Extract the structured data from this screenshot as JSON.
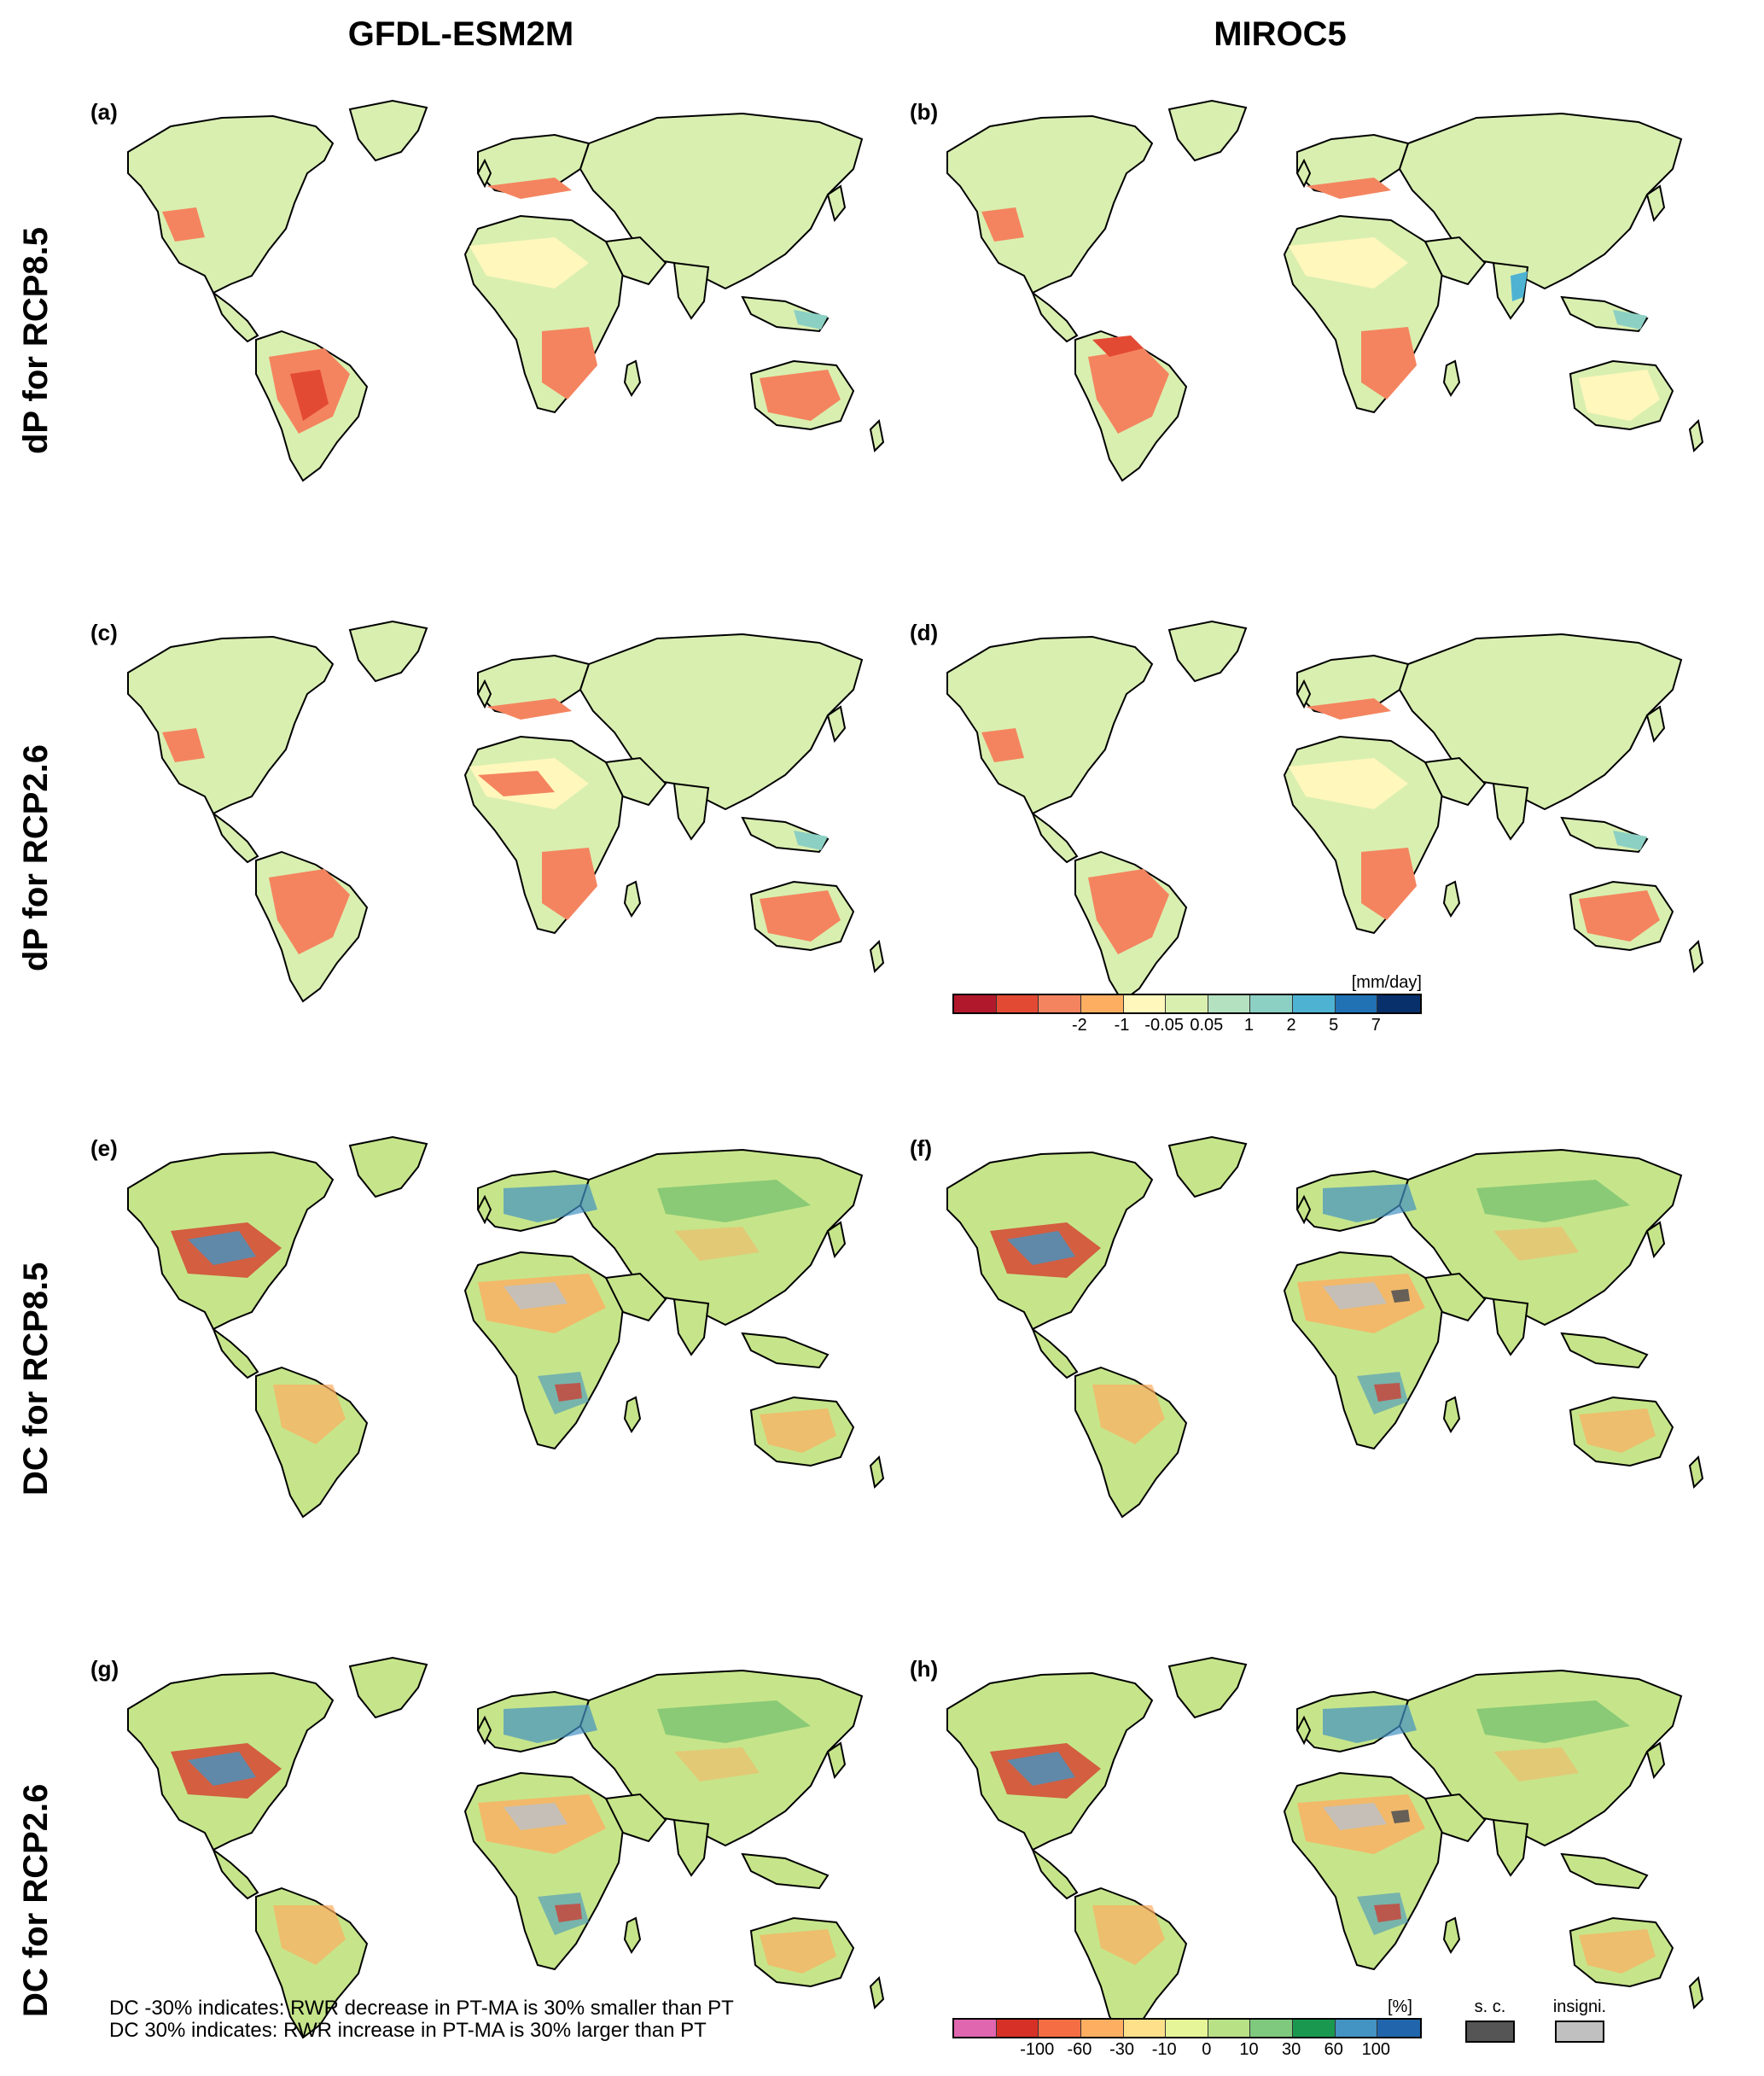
{
  "columns": {
    "left": "GFDL-ESM2M",
    "right": "MIROC5"
  },
  "rows": [
    "dP for RCP8.5",
    "dP for RCP2.6",
    "DC for RCP8.5",
    "DC for RCP2.6"
  ],
  "panels": [
    {
      "label": "(a)",
      "model": "GFDL-ESM2M",
      "scenario": "RCP8.5",
      "variable": "dP"
    },
    {
      "label": "(b)",
      "model": "MIROC5",
      "scenario": "RCP8.5",
      "variable": "dP"
    },
    {
      "label": "(c)",
      "model": "GFDL-ESM2M",
      "scenario": "RCP2.6",
      "variable": "dP"
    },
    {
      "label": "(d)",
      "model": "MIROC5",
      "scenario": "RCP2.6",
      "variable": "dP"
    },
    {
      "label": "(e)",
      "model": "GFDL-ESM2M",
      "scenario": "RCP8.5",
      "variable": "DC"
    },
    {
      "label": "(f)",
      "model": "MIROC5",
      "scenario": "RCP8.5",
      "variable": "DC"
    },
    {
      "label": "(g)",
      "model": "GFDL-ESM2M",
      "scenario": "RCP2.6",
      "variable": "DC"
    },
    {
      "label": "(h)",
      "model": "MIROC5",
      "scenario": "RCP2.6",
      "variable": "DC"
    }
  ],
  "dp_legend": {
    "unit": "[mm/day]",
    "ticks": [
      "-2",
      "-1",
      "-0.05",
      "0.05",
      "1",
      "2",
      "5",
      "7"
    ],
    "colors": [
      "#b2182b",
      "#e34a33",
      "#f4845f",
      "#fdae61",
      "#fff7bc",
      "#d9efb0",
      "#b4e1c0",
      "#8cd0c4",
      "#4eb3d3",
      "#2171b5",
      "#08306b"
    ]
  },
  "dc_legend": {
    "unit": "[%]",
    "ticks": [
      "-100",
      "-60",
      "-30",
      "-10",
      "0",
      "10",
      "30",
      "60",
      "100"
    ],
    "colors": [
      "#e066b0",
      "#d73027",
      "#f46d43",
      "#fdae61",
      "#fee08b",
      "#e6f598",
      "#b8e186",
      "#7fc97f",
      "#1a9850",
      "#4393c3",
      "#2166ac"
    ]
  },
  "significance": [
    {
      "label": "s. c.",
      "color": "#555555"
    },
    {
      "label": "insigni.",
      "color": "#c0c0c0"
    }
  ],
  "notes": [
    "DC -30% indicates: RWR decrease in PT-MA is 30% smaller than PT",
    "DC 30% indicates: RWR increase in PT-MA is 30% larger than PT"
  ],
  "map_colors": {
    "ocean": "#ffffff",
    "outline": "#000000",
    "dp_background": "#d9efb0",
    "dc_background": "#c6e58a"
  }
}
